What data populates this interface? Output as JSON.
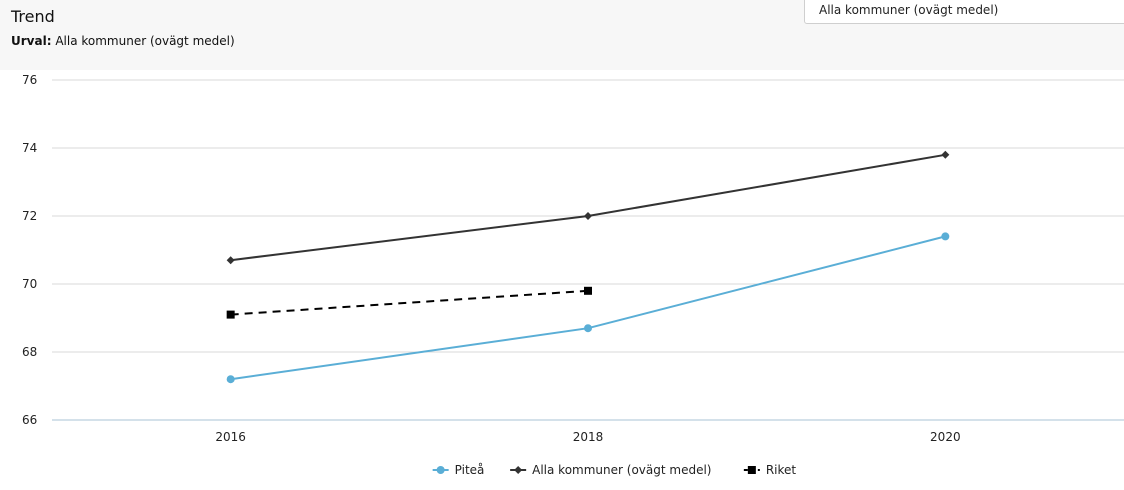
{
  "header": {
    "title": "Trend",
    "selection_label": "Urval:",
    "selection_value": "Alla kommuner (ovägt medel)"
  },
  "selector": {
    "value": "Alla kommuner (ovägt medel)"
  },
  "chart_data": {
    "type": "line",
    "categories": [
      "2016",
      "2018",
      "2020"
    ],
    "xlim": [
      2015,
      2021
    ],
    "ylim": [
      66,
      76
    ],
    "yticks": [
      66,
      68,
      70,
      72,
      74,
      76
    ],
    "grid": true,
    "legend_position": "bottom",
    "series": [
      {
        "name": "Piteå",
        "x": [
          2016,
          2018,
          2020
        ],
        "values": [
          67.2,
          68.7,
          71.4
        ],
        "color": "#5aaed6",
        "marker": "circle",
        "dash": "solid"
      },
      {
        "name": "Alla kommuner (ovägt medel)",
        "x": [
          2016,
          2018,
          2020
        ],
        "values": [
          70.7,
          72.0,
          73.8
        ],
        "color": "#333333",
        "marker": "diamond",
        "dash": "solid"
      },
      {
        "name": "Riket",
        "x": [
          2016,
          2018
        ],
        "values": [
          69.1,
          69.8
        ],
        "color": "#000000",
        "marker": "square",
        "dash": "dashed"
      }
    ]
  }
}
